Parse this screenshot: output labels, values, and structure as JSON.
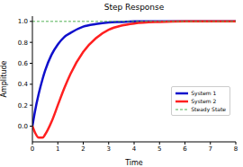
{
  "chart_data": {
    "type": "line",
    "title": "Step Response",
    "x_label": "Time",
    "y_label": "Amplitude",
    "x": [
      0,
      0.1,
      0.25,
      0.4,
      0.5,
      0.75,
      1,
      1.25,
      1.5,
      2,
      2.5,
      3,
      3.5,
      4,
      5,
      6,
      7,
      8
    ],
    "series": [
      {
        "name": "System 1",
        "color": "#1010cc",
        "line_style": "solid",
        "values": [
          0,
          0.14,
          0.31,
          0.45,
          0.53,
          0.68,
          0.78,
          0.85,
          0.89,
          0.95,
          0.975,
          0.99,
          0.995,
          1.0,
          1.0,
          1.0,
          1.0,
          1.0
        ]
      },
      {
        "name": "System 2",
        "color": "#ff2020",
        "line_style": "solid",
        "values": [
          0,
          -0.06,
          -0.11,
          -0.11,
          -0.08,
          0.04,
          0.2,
          0.36,
          0.5,
          0.71,
          0.84,
          0.92,
          0.96,
          0.98,
          0.995,
          1.0,
          1.0,
          1.0
        ]
      },
      {
        "name": "Steady State",
        "color": "#4caf50",
        "line_style": "dashed",
        "values": [
          1.0,
          1.0,
          1.0,
          1.0,
          1.0,
          1.0,
          1.0,
          1.0,
          1.0,
          1.0,
          1.0,
          1.0,
          1.0,
          1.0,
          1.0,
          1.0,
          1.0,
          1.0
        ]
      }
    ],
    "xlim": [
      0,
      8
    ],
    "xticks": [
      0,
      1,
      2,
      3,
      4,
      5,
      6,
      7,
      8
    ],
    "ylim": [
      -0.15,
      1.05
    ],
    "yticks": [
      {
        "value": 0,
        "label": "0.0"
      },
      0.2,
      0.4,
      0.6,
      0.8,
      {
        "value": 1,
        "label": "1.0"
      }
    ],
    "grid": false,
    "legend": "right"
  }
}
